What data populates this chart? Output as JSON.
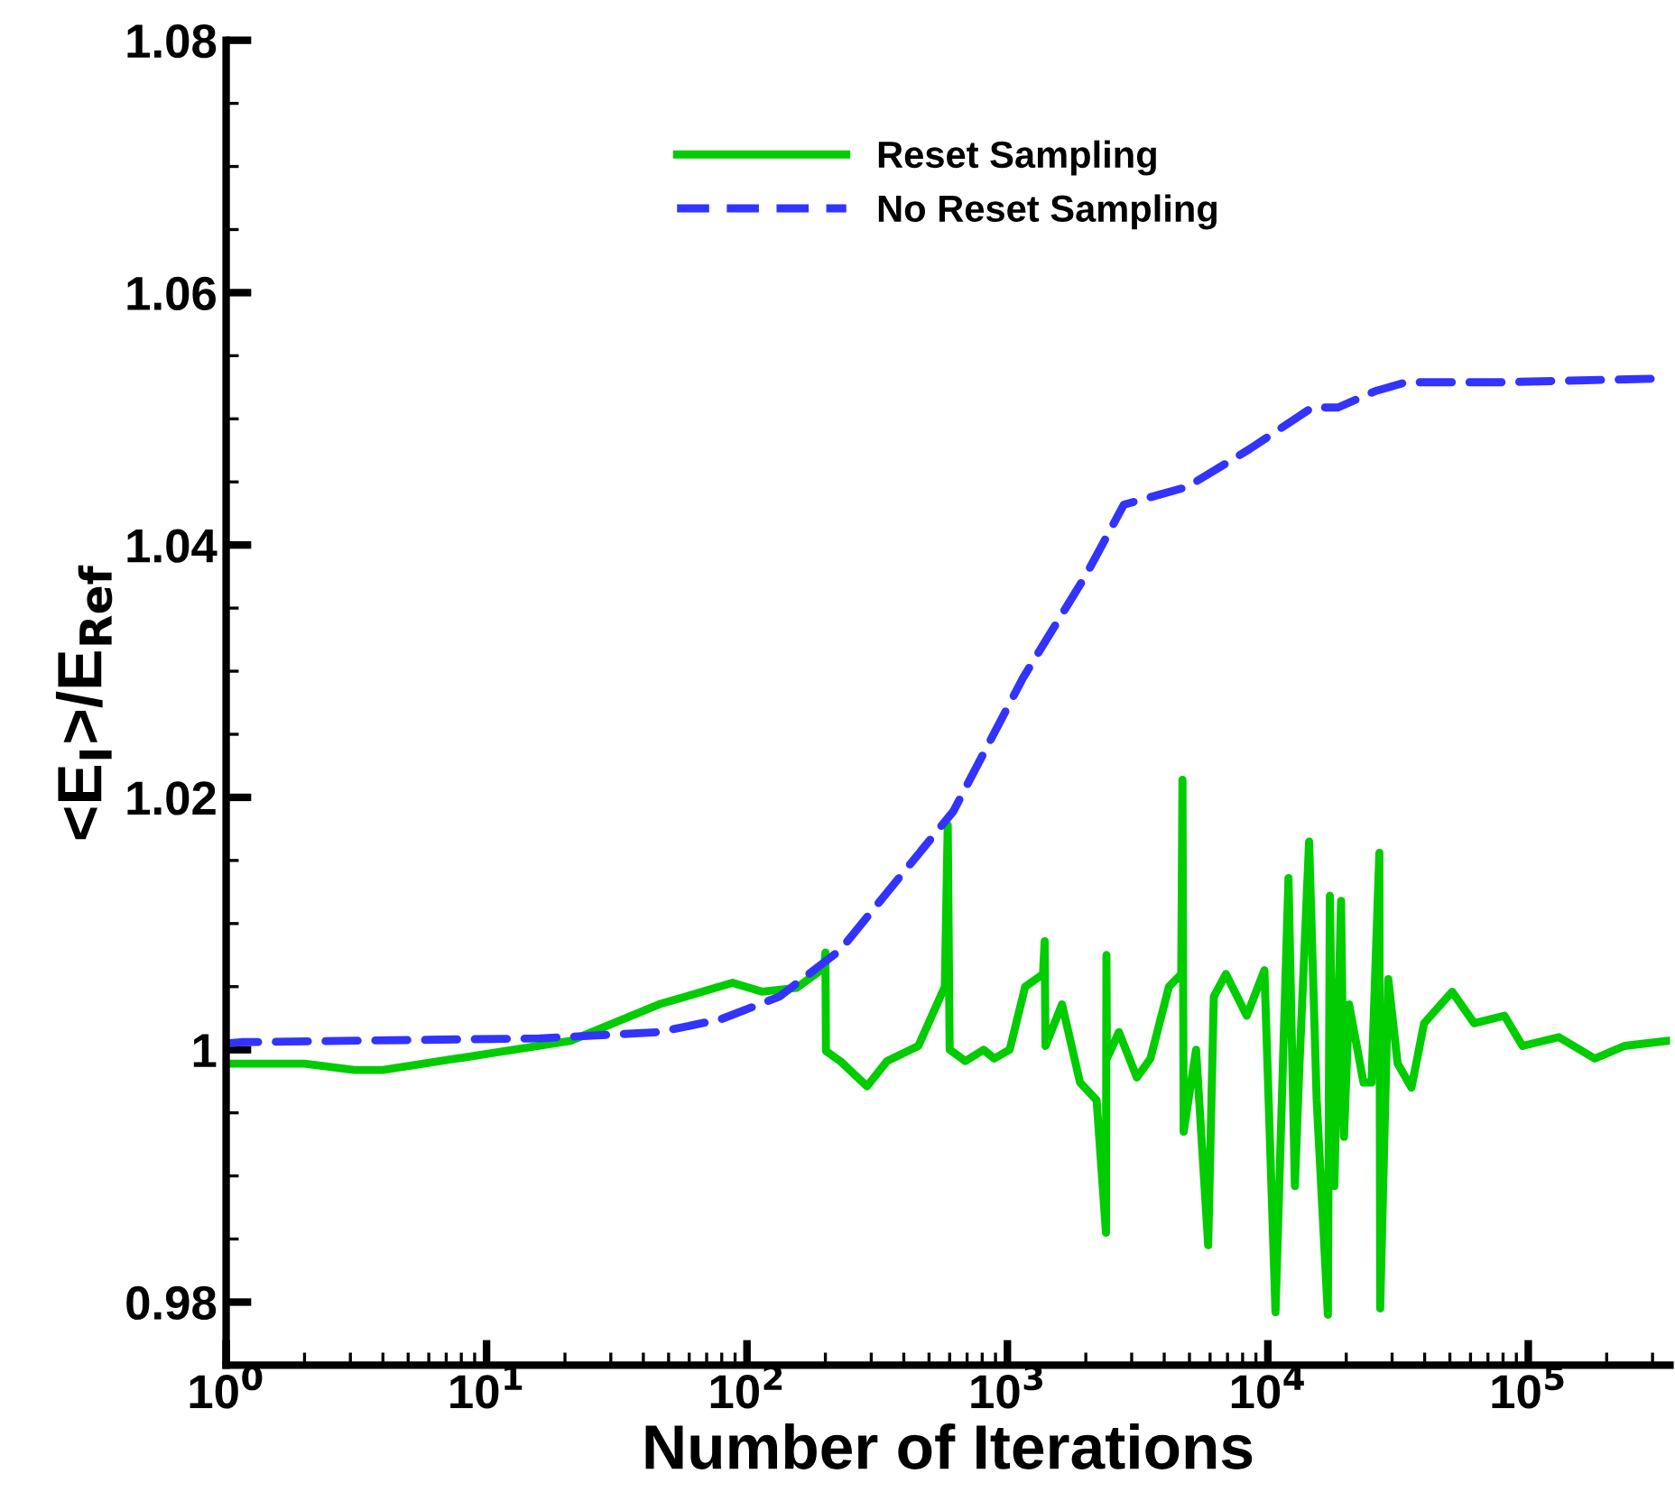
{
  "chart_data": {
    "type": "line",
    "xlabel": "Number of Iterations",
    "ylabel": "<E$_{I}$>/E$_{Ref}$",
    "log": "x",
    "xlim": [
      1,
      350000
    ],
    "ylim": [
      0.975,
      1.08
    ],
    "xticks": [
      {
        "value": 1,
        "label": "10$^{0}$"
      },
      {
        "value": 10,
        "label": "10$^{1}$"
      },
      {
        "value": 100,
        "label": "10$^{2}$"
      },
      {
        "value": 1000,
        "label": "10$^{3}$"
      },
      {
        "value": 10000,
        "label": "10$^{4}$"
      },
      {
        "value": 100000,
        "label": "10$^{5}$"
      }
    ],
    "yticks": [
      0.98,
      1,
      1.02,
      1.04,
      1.06,
      1.08
    ],
    "grid": false,
    "legend": "top",
    "marker": "none",
    "series": [
      {
        "name": "Reset Sampling",
        "color": "#00cc00",
        "line_style": "solid",
        "x": [
          1.03,
          2.0,
          3.1,
          4.0,
          9.5,
          21,
          46,
          88,
          114,
          155,
          198,
          200,
          201,
          228,
          289,
          345,
          455,
          575,
          590,
          600,
          690,
          810,
          890,
          1020,
          1170,
          1370,
          1390,
          1400,
          1620,
          1900,
          2200,
          2390,
          2400,
          2410,
          2680,
          3140,
          3540,
          4170,
          4650,
          4700,
          4750,
          5300,
          5900,
          6200,
          6900,
          8300,
          9700,
          10700,
          12000,
          12700,
          13200,
          14400,
          15400,
          17000,
          17300,
          18000,
          19100,
          19600,
          20500,
          23300,
          25000,
          26800,
          27000,
          29000,
          31500,
          35600,
          39800,
          51000,
          62000,
          81000,
          95000,
          131000,
          180000,
          234000,
          340000
        ],
        "values": [
          0.9989,
          0.9989,
          0.9984,
          0.9984,
          0.9996,
          1.0007,
          1.0036,
          1.0053,
          1.0046,
          1.0049,
          1.0065,
          1.0077,
          0.9999,
          0.9991,
          0.9971,
          0.9991,
          1.0003,
          1.005,
          1.0178,
          1.0,
          0.9991,
          1.0,
          0.9993,
          1.0,
          1.005,
          1.006,
          1.0086,
          1.0003,
          1.0036,
          0.9974,
          0.996,
          0.9855,
          1.0075,
          0.9993,
          1.0014,
          0.9978,
          0.9993,
          1.005,
          1.006,
          1.0214,
          0.9935,
          1.0,
          0.9845,
          1.0042,
          1.006,
          1.0027,
          1.0063,
          0.9792,
          1.0136,
          0.9892,
          0.9984,
          1.0165,
          0.996,
          0.979,
          1.0122,
          0.9892,
          1.0118,
          0.9931,
          1.0036,
          0.9974,
          0.9974,
          1.0156,
          0.9795,
          1.0056,
          0.9989,
          0.997,
          1.0021,
          1.0046,
          1.0021,
          1.0027,
          1.0003,
          1.001,
          0.9993,
          1.0003,
          1.0007
        ]
      },
      {
        "name": "No Reset Sampling",
        "color": "#3333ff",
        "line_style": "dashed",
        "x": [
          1.0,
          1.14,
          16,
          46,
          79,
          133,
          228,
          620,
          1150,
          2000,
          2800,
          4900,
          8500,
          14800,
          18600,
          25900,
          33900,
          79000,
          330000
        ],
        "values": [
          1.0005,
          1.0006,
          1.0009,
          1.0014,
          1.0024,
          1.0042,
          1.0079,
          1.0189,
          1.0295,
          1.0376,
          1.0432,
          1.0446,
          1.0476,
          1.0509,
          1.0509,
          1.0522,
          1.0529,
          1.0529,
          1.0532
        ]
      }
    ]
  }
}
